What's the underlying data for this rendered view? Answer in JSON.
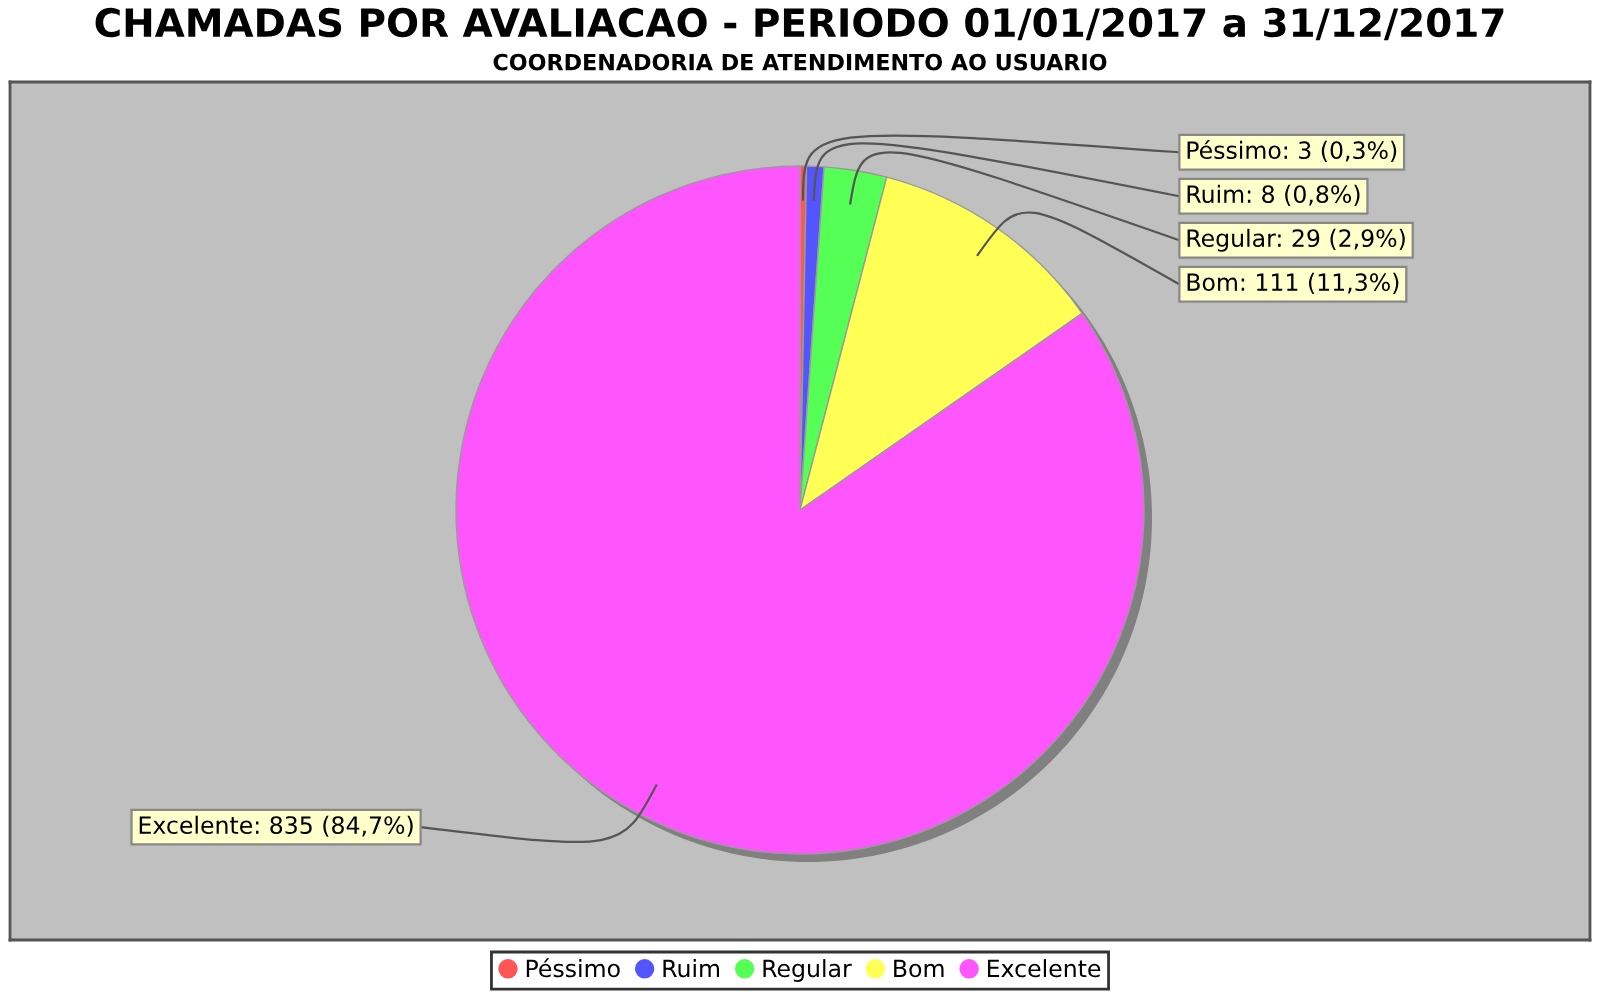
{
  "chart_data": {
    "type": "pie",
    "title": "CHAMADAS POR AVALIACAO - PERIODO 01/01/2017 a 31/12/2017",
    "subtitle": "COORDENADORIA DE ATENDIMENTO AO USUARIO",
    "categories": [
      "Péssimo",
      "Ruim",
      "Regular",
      "Bom",
      "Excelente"
    ],
    "values": [
      3,
      8,
      29,
      111,
      835
    ],
    "colors": [
      "#ff5555",
      "#5555ff",
      "#55ff55",
      "#ffff55",
      "#ff55ff"
    ],
    "value_labels": [
      "Péssimo: 3 (0,3%)",
      "Ruim: 8 (0,8%)",
      "Regular: 29 (2,9%)",
      "Bom: 111 (11,3%)",
      "Excelente: 835 (84,7%)"
    ],
    "legend": "bottom"
  }
}
